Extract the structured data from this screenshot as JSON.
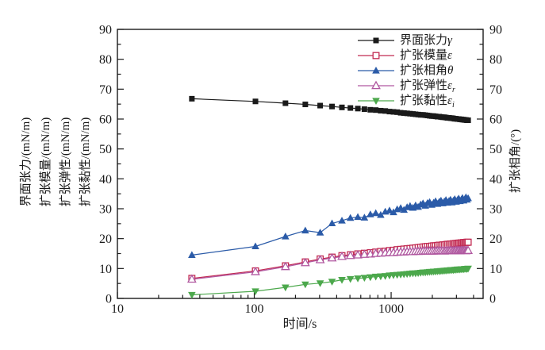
{
  "figure": {
    "background_color": "#ffffff",
    "x_axis": {
      "title": "时间/s",
      "scale": "log",
      "range": [
        10,
        4700
      ],
      "major_ticks": [
        10,
        100,
        1000
      ],
      "major_tick_labels": [
        "10",
        "100",
        "1000"
      ]
    },
    "y_left_axis": {
      "titles": [
        "界面张力/(mN/m)",
        "扩张模量/(mN/m)",
        "扩张弹性/(mN/m)",
        "扩张黏性/(mN/m)"
      ],
      "range": [
        0,
        90
      ],
      "major_ticks": [
        0,
        10,
        20,
        30,
        40,
        50,
        60,
        70,
        80,
        90
      ],
      "minor_step": 5
    },
    "y_right_axis": {
      "title": "扩张相角/(°)",
      "range": [
        0,
        90
      ],
      "major_ticks": [
        0,
        10,
        20,
        30,
        40,
        50,
        60,
        70,
        80,
        90
      ],
      "minor_step": 5
    },
    "legend_position": "top-right-inside",
    "grid": "off"
  },
  "chart_data": {
    "type": "line",
    "x_label": "时间/s",
    "x": [
      35,
      102,
      169,
      236,
      303,
      370,
      437,
      504,
      571,
      638,
      705,
      772,
      839,
      906,
      973,
      1040,
      1107,
      1174,
      1241,
      1308,
      1375,
      1442,
      1509,
      1576,
      1643,
      1710,
      1777,
      1844,
      1911,
      1978,
      2045,
      2112,
      2179,
      2246,
      2313,
      2380,
      2447,
      2514,
      2581,
      2648,
      2715,
      2782,
      2849,
      2916,
      2983,
      3050,
      3117,
      3184,
      3251,
      3318,
      3385,
      3452,
      3519,
      3586,
      3653
    ],
    "series": [
      {
        "name": "界面张力",
        "symbol": "γ",
        "symbol_sub": "",
        "marker": "square-filled",
        "color": "#1a1a1a",
        "axis": "left",
        "values": [
          66.8,
          65.9,
          65.3,
          64.9,
          64.5,
          64.2,
          63.9,
          63.7,
          63.5,
          63.3,
          63.1,
          63.0,
          62.8,
          62.7,
          62.5,
          62.4,
          62.3,
          62.1,
          62.0,
          61.9,
          61.8,
          61.7,
          61.6,
          61.5,
          61.4,
          61.4,
          61.3,
          61.2,
          61.1,
          61.0,
          61.0,
          60.9,
          60.8,
          60.8,
          60.7,
          60.6,
          60.6,
          60.5,
          60.4,
          60.4,
          60.3,
          60.3,
          60.2,
          60.1,
          60.1,
          60.0,
          60.0,
          59.9,
          59.9,
          59.8,
          59.8,
          59.7,
          59.7,
          59.6,
          59.6
        ]
      },
      {
        "name": "扩张模量",
        "symbol": "ε",
        "symbol_sub": "",
        "marker": "square-open",
        "color": "#c22a52",
        "axis": "left",
        "values": [
          6.7,
          9.2,
          10.9,
          12.2,
          13.2,
          13.8,
          14.3,
          14.6,
          14.9,
          15.1,
          15.3,
          15.5,
          15.7,
          15.8,
          16.0,
          16.1,
          16.3,
          16.4,
          16.5,
          16.6,
          16.7,
          16.8,
          16.9,
          17.0,
          17.1,
          17.2,
          17.3,
          17.4,
          17.4,
          17.5,
          17.6,
          17.6,
          17.7,
          17.8,
          17.8,
          17.9,
          17.9,
          18.0,
          18.1,
          18.1,
          18.2,
          18.2,
          18.3,
          18.3,
          18.4,
          18.4,
          18.5,
          18.5,
          18.6,
          18.6,
          18.7,
          18.7,
          18.7,
          18.8,
          18.8
        ]
      },
      {
        "name": "扩张相角",
        "symbol": "θ",
        "symbol_sub": "",
        "marker": "triangle-filled",
        "color": "#2b5ba8",
        "axis": "right",
        "values": [
          14.5,
          17.4,
          20.7,
          22.7,
          22.0,
          25.1,
          26.0,
          26.9,
          27.2,
          27.0,
          28.1,
          28.5,
          27.9,
          29.0,
          29.4,
          28.8,
          29.8,
          30.2,
          29.6,
          30.5,
          30.9,
          30.3,
          31.1,
          30.6,
          31.4,
          31.8,
          31.0,
          31.9,
          32.2,
          31.3,
          32.0,
          32.5,
          31.6,
          32.3,
          32.7,
          31.8,
          32.4,
          32.9,
          32.0,
          32.6,
          33.0,
          32.1,
          32.7,
          33.2,
          32.3,
          32.9,
          33.4,
          32.5,
          33.0,
          33.6,
          32.7,
          33.2,
          33.8,
          33.0,
          33.5
        ]
      },
      {
        "name": "扩张弹性",
        "symbol": "ε",
        "symbol_sub": "r",
        "marker": "triangle-open",
        "color": "#b058a0",
        "axis": "left",
        "values": [
          6.4,
          8.9,
          10.6,
          11.9,
          12.9,
          13.5,
          14.0,
          14.3,
          14.5,
          14.7,
          14.8,
          15.0,
          15.1,
          15.2,
          15.3,
          15.3,
          15.4,
          15.5,
          15.5,
          15.6,
          15.6,
          15.6,
          15.7,
          15.7,
          15.7,
          15.8,
          15.8,
          15.8,
          15.8,
          15.8,
          15.8,
          15.8,
          15.9,
          15.9,
          15.9,
          15.9,
          15.8,
          15.9,
          15.9,
          15.9,
          16.0,
          15.9,
          15.9,
          15.9,
          16.0,
          15.9,
          16.0,
          15.9,
          16.0,
          16.0,
          16.0,
          16.0,
          15.9,
          16.0,
          16.0
        ]
      },
      {
        "name": "扩张黏性",
        "symbol": "ε",
        "symbol_sub": "i",
        "marker": "triangle-down-filled",
        "color": "#4ca84c",
        "axis": "left",
        "values": [
          1.2,
          2.4,
          3.7,
          4.7,
          5.1,
          5.6,
          6.2,
          6.5,
          6.7,
          6.9,
          7.1,
          7.3,
          7.4,
          7.5,
          7.7,
          7.8,
          7.9,
          8.0,
          8.1,
          8.2,
          8.3,
          8.4,
          8.4,
          8.5,
          8.6,
          8.7,
          8.7,
          8.8,
          8.9,
          8.9,
          9.0,
          9.0,
          9.1,
          9.1,
          9.2,
          9.2,
          9.3,
          9.3,
          9.4,
          9.4,
          9.5,
          9.5,
          9.5,
          9.6,
          9.6,
          9.7,
          9.7,
          9.7,
          9.8,
          9.8,
          9.8,
          9.9,
          9.9,
          9.9,
          10.0
        ]
      }
    ]
  }
}
